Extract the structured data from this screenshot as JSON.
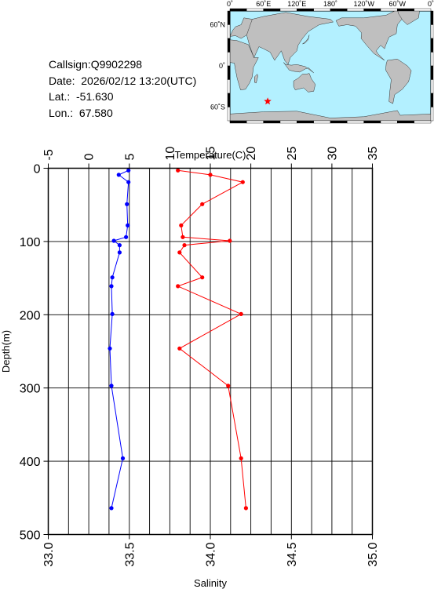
{
  "info": {
    "callsign": "Callsign:Q9902298",
    "date": "Date:  2026/02/12 13:20(UTC)",
    "lat": "Lat.:  -51.630",
    "lon": "Lon.:  67.580"
  },
  "map": {
    "top_labels": [
      "0˚",
      "60˚E",
      "120˚E",
      "180˚",
      "120˚W",
      "60˚W",
      "0˚"
    ],
    "lat_labels": [
      "60˚N",
      "0˚",
      "60˚S"
    ],
    "ocean_color": "#b3f0ff",
    "land_color": "#bfbfbf",
    "marker_color": "#ff0000",
    "marker_lon_e": 67.58,
    "marker_lat": -51.63
  },
  "chart_data": {
    "type": "line",
    "ylabel": "Depth(m)",
    "ylim": [
      500,
      0
    ],
    "yticks": [
      0,
      100,
      200,
      300,
      400,
      500
    ],
    "temperature_axis": {
      "label": "Temperature(C)",
      "lim": [
        -5,
        35
      ],
      "ticks": [
        -5,
        0,
        5,
        10,
        15,
        20,
        25,
        30,
        35
      ],
      "color": "#0000ff"
    },
    "salinity_axis": {
      "label": "Salinity",
      "lim": [
        33.0,
        35.0
      ],
      "ticks": [
        "33.0",
        "33.5",
        "34.0",
        "34.5",
        "35.0"
      ],
      "color": "#ff0000"
    },
    "grid": true,
    "series": [
      {
        "axis": "temperature",
        "color": "#0000ff",
        "points": [
          [
            4.9,
            3
          ],
          [
            3.7,
            9
          ],
          [
            4.9,
            19
          ],
          [
            4.7,
            49
          ],
          [
            4.8,
            78
          ],
          [
            4.6,
            94
          ],
          [
            3.1,
            99
          ],
          [
            3.8,
            105
          ],
          [
            3.8,
            115
          ],
          [
            2.9,
            149
          ],
          [
            2.8,
            161
          ],
          [
            2.9,
            199
          ],
          [
            2.6,
            246
          ],
          [
            2.8,
            297
          ],
          [
            4.2,
            396
          ],
          [
            2.8,
            464
          ]
        ]
      },
      {
        "axis": "salinity",
        "color": "#ff0000",
        "points": [
          [
            33.8,
            3
          ],
          [
            34.0,
            9
          ],
          [
            34.2,
            19
          ],
          [
            33.95,
            49
          ],
          [
            33.82,
            78
          ],
          [
            33.83,
            94
          ],
          [
            34.12,
            99
          ],
          [
            33.84,
            105
          ],
          [
            33.81,
            115
          ],
          [
            33.95,
            149
          ],
          [
            33.8,
            161
          ],
          [
            34.19,
            199
          ],
          [
            33.81,
            246
          ],
          [
            34.11,
            297
          ],
          [
            34.19,
            396
          ],
          [
            34.22,
            464
          ]
        ]
      }
    ]
  }
}
